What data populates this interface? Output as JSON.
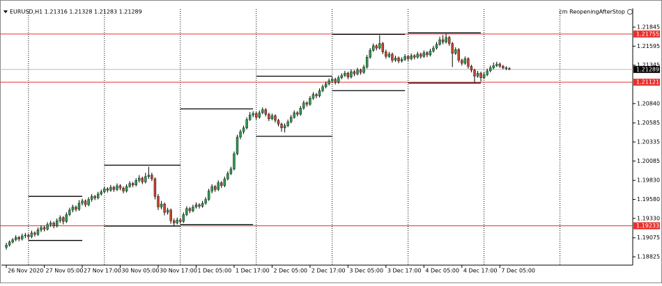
{
  "chart_data": {
    "type": "candlestick",
    "symbol_line": "EURUSD,H1  1.21316 1.21328 1.21283 1.21289",
    "indicator": "cm ReopeningAfterStop",
    "ylim": [
      1.18725,
      1.22083
    ],
    "yticks": [
      1.21845,
      1.21595,
      1.21345,
      {
        "value": 1.2084,
        "label": "1.20840"
      },
      1.20585,
      1.20335,
      1.20085,
      {
        "value": 1.1983,
        "label": "1.19830"
      },
      {
        "value": 1.1958,
        "label": "1.19580"
      },
      {
        "value": 1.1933,
        "label": "1.19330"
      },
      1.19075,
      1.18825
    ],
    "xlim": [
      -2,
      198
    ],
    "xticks": [
      {
        "value": 0,
        "label": "26 Nov 2020"
      },
      {
        "value": 12,
        "label": "27 Nov 05:00"
      },
      {
        "value": 24,
        "label": "27 Nov 17:00"
      },
      {
        "value": 36,
        "label": "30 Nov 05:00"
      },
      {
        "value": 48,
        "label": "30 Nov 17:00"
      },
      {
        "value": 60,
        "label": "1 Dec 05:00"
      },
      {
        "value": 72,
        "label": "1 Dec 17:00"
      },
      {
        "value": 84,
        "label": "2 Dec 05:00"
      },
      {
        "value": 96,
        "label": "2 Dec 17:00"
      },
      {
        "value": 108,
        "label": "3 Dec 05:00"
      },
      {
        "value": 120,
        "label": "3 Dec 17:00"
      },
      {
        "value": 132,
        "label": "4 Dec 05:00"
      },
      {
        "value": 144,
        "label": "4 Dec 17:00"
      },
      {
        "value": 156,
        "label": "7 Dec 05:00"
      }
    ],
    "separators": [
      7,
      31,
      55,
      79,
      103,
      127,
      151,
      175
    ],
    "up_color": "#2e9a4e",
    "down_color": "#c0462e",
    "levels": [
      {
        "value": 1.21755,
        "color": "#e8302c"
      },
      {
        "value": 1.21289,
        "color": "#b8b8b8",
        "current": true
      },
      {
        "value": 1.21121,
        "color": "#e8302c"
      },
      {
        "value": 1.19233,
        "color": "#e8302c"
      }
    ],
    "ranges": [
      {
        "start": 7,
        "end": 24,
        "high": 1.1962,
        "low": 1.1904
      },
      {
        "start": 31,
        "end": 55,
        "high": 1.2003,
        "low": 1.1923
      },
      {
        "start": 55,
        "end": 78,
        "high": 1.2077,
        "low": 1.1925
      },
      {
        "start": 79,
        "end": 103,
        "high": 1.212,
        "low": 1.2041
      },
      {
        "start": 103,
        "end": 126,
        "high": 1.2175,
        "low": 1.2101
      },
      {
        "start": 127,
        "end": 150,
        "high": 1.2177,
        "low": 1.2111
      }
    ],
    "candles": [
      [
        1.1895,
        1.1901,
        1.1892,
        1.1898
      ],
      [
        1.1898,
        1.1904,
        1.1896,
        1.1902
      ],
      [
        1.1902,
        1.1907,
        1.19,
        1.1905
      ],
      [
        1.1905,
        1.1911,
        1.1903,
        1.1908
      ],
      [
        1.1908,
        1.191,
        1.1903,
        1.1906
      ],
      [
        1.1906,
        1.1913,
        1.1904,
        1.191
      ],
      [
        1.191,
        1.1914,
        1.1907,
        1.1911
      ],
      [
        1.1911,
        1.1913,
        1.1905,
        1.1909
      ],
      [
        1.1909,
        1.1917,
        1.1907,
        1.1914
      ],
      [
        1.1914,
        1.1916,
        1.1909,
        1.1912
      ],
      [
        1.1912,
        1.1921,
        1.191,
        1.1918
      ],
      [
        1.1918,
        1.1924,
        1.1915,
        1.1921
      ],
      [
        1.1921,
        1.1923,
        1.1916,
        1.1919
      ],
      [
        1.1919,
        1.1928,
        1.1917,
        1.1925
      ],
      [
        1.1925,
        1.193,
        1.1922,
        1.1927
      ],
      [
        1.1927,
        1.1929,
        1.192,
        1.1923
      ],
      [
        1.1923,
        1.1933,
        1.1921,
        1.193
      ],
      [
        1.193,
        1.1937,
        1.1927,
        1.1934
      ],
      [
        1.1934,
        1.1936,
        1.1925,
        1.1929
      ],
      [
        1.1929,
        1.1941,
        1.1927,
        1.1938
      ],
      [
        1.1938,
        1.1947,
        1.1936,
        1.1944
      ],
      [
        1.1944,
        1.1951,
        1.1941,
        1.1948
      ],
      [
        1.1948,
        1.195,
        1.1942,
        1.1945
      ],
      [
        1.1945,
        1.1957,
        1.1943,
        1.1953
      ],
      [
        1.1953,
        1.1959,
        1.195,
        1.1956
      ],
      [
        1.1956,
        1.1958,
        1.1948,
        1.1951
      ],
      [
        1.1951,
        1.1961,
        1.1949,
        1.1958
      ],
      [
        1.1958,
        1.1965,
        1.1955,
        1.1962
      ],
      [
        1.1962,
        1.1964,
        1.1957,
        1.196
      ],
      [
        1.196,
        1.1968,
        1.1958,
        1.1965
      ],
      [
        1.1965,
        1.1971,
        1.1963,
        1.1968
      ],
      [
        1.1968,
        1.1975,
        1.1966,
        1.1972
      ],
      [
        1.1972,
        1.1974,
        1.1967,
        1.197
      ],
      [
        1.197,
        1.1977,
        1.1968,
        1.1974
      ],
      [
        1.1974,
        1.1976,
        1.1968,
        1.1971
      ],
      [
        1.1971,
        1.1979,
        1.1969,
        1.1976
      ],
      [
        1.1976,
        1.1978,
        1.197,
        1.1973
      ],
      [
        1.1973,
        1.1975,
        1.1966,
        1.1969
      ],
      [
        1.1969,
        1.1978,
        1.1967,
        1.1975
      ],
      [
        1.1975,
        1.1982,
        1.1973,
        1.1979
      ],
      [
        1.1979,
        1.1981,
        1.1974,
        1.1977
      ],
      [
        1.1977,
        1.1986,
        1.1975,
        1.1983
      ],
      [
        1.1983,
        1.199,
        1.198,
        1.1986
      ],
      [
        1.1986,
        1.1988,
        1.1978,
        1.1981
      ],
      [
        1.1981,
        1.1993,
        1.1979,
        1.1988
      ],
      [
        1.1988,
        1.2001,
        1.1985,
        1.199
      ],
      [
        1.199,
        1.1993,
        1.1982,
        1.1985
      ],
      [
        1.1985,
        1.1987,
        1.1958,
        1.1962
      ],
      [
        1.1962,
        1.1965,
        1.1944,
        1.1948
      ],
      [
        1.1948,
        1.1956,
        1.1945,
        1.1952
      ],
      [
        1.1952,
        1.1954,
        1.1937,
        1.1941
      ],
      [
        1.1941,
        1.1947,
        1.1938,
        1.1944
      ],
      [
        1.1944,
        1.1946,
        1.1926,
        1.193
      ],
      [
        1.193,
        1.1933,
        1.1923,
        1.1927
      ],
      [
        1.1927,
        1.1934,
        1.1925,
        1.1931
      ],
      [
        1.1931,
        1.1933,
        1.1926,
        1.1929
      ],
      [
        1.1929,
        1.1941,
        1.1927,
        1.1938
      ],
      [
        1.1938,
        1.1949,
        1.1936,
        1.1946
      ],
      [
        1.1946,
        1.1948,
        1.194,
        1.1943
      ],
      [
        1.1943,
        1.1951,
        1.1941,
        1.1948
      ],
      [
        1.1948,
        1.1954,
        1.1946,
        1.1951
      ],
      [
        1.1951,
        1.1953,
        1.1946,
        1.1949
      ],
      [
        1.1949,
        1.1956,
        1.1947,
        1.1953
      ],
      [
        1.1953,
        1.1961,
        1.1951,
        1.1958
      ],
      [
        1.1958,
        1.1972,
        1.1956,
        1.1969
      ],
      [
        1.1969,
        1.1978,
        1.1966,
        1.1975
      ],
      [
        1.1975,
        1.1977,
        1.1968,
        1.1971
      ],
      [
        1.1971,
        1.1983,
        1.1969,
        1.198
      ],
      [
        1.198,
        1.1982,
        1.1973,
        1.1976
      ],
      [
        1.1976,
        1.1988,
        1.1974,
        1.1985
      ],
      [
        1.1985,
        1.1995,
        1.1983,
        1.1992
      ],
      [
        1.1992,
        1.2001,
        1.199,
        1.1998
      ],
      [
        1.1998,
        1.2021,
        1.1996,
        1.2018
      ],
      [
        1.2018,
        1.2043,
        1.2016,
        1.204
      ],
      [
        1.204,
        1.205,
        1.2037,
        1.2047
      ],
      [
        1.2047,
        1.2055,
        1.2044,
        1.2052
      ],
      [
        1.2052,
        1.2066,
        1.205,
        1.2063
      ],
      [
        1.2063,
        1.2073,
        1.2061,
        1.2069
      ],
      [
        1.2069,
        1.2074,
        1.2066,
        1.2071
      ],
      [
        1.2071,
        1.2073,
        1.2063,
        1.2066
      ],
      [
        1.2066,
        1.2075,
        1.2064,
        1.2072
      ],
      [
        1.2072,
        1.2079,
        1.207,
        1.2076
      ],
      [
        1.2076,
        1.2078,
        1.2067,
        1.207
      ],
      [
        1.207,
        1.2072,
        1.2061,
        1.2064
      ],
      [
        1.2064,
        1.2071,
        1.2062,
        1.2068
      ],
      [
        1.2068,
        1.207,
        1.2059,
        1.2062
      ],
      [
        1.2062,
        1.2064,
        1.2054,
        1.2057
      ],
      [
        1.2057,
        1.2059,
        1.2047,
        1.2052
      ],
      [
        1.2052,
        1.2058,
        1.2046,
        1.2055
      ],
      [
        1.2055,
        1.2063,
        1.2053,
        1.206
      ],
      [
        1.206,
        1.2069,
        1.2058,
        1.2066
      ],
      [
        1.2066,
        1.2075,
        1.2064,
        1.2072
      ],
      [
        1.2072,
        1.2074,
        1.2067,
        1.207
      ],
      [
        1.207,
        1.2081,
        1.2068,
        1.2078
      ],
      [
        1.2078,
        1.2088,
        1.2076,
        1.2085
      ],
      [
        1.2085,
        1.2087,
        1.208,
        1.2083
      ],
      [
        1.2083,
        1.2094,
        1.2081,
        1.2091
      ],
      [
        1.2091,
        1.2099,
        1.2089,
        1.2096
      ],
      [
        1.2096,
        1.2098,
        1.2091,
        1.2094
      ],
      [
        1.2094,
        1.2104,
        1.2092,
        1.2101
      ],
      [
        1.2101,
        1.2109,
        1.2099,
        1.2106
      ],
      [
        1.2106,
        1.2113,
        1.2104,
        1.211
      ],
      [
        1.211,
        1.2117,
        1.2108,
        1.2114
      ],
      [
        1.2114,
        1.2119,
        1.2111,
        1.2116
      ],
      [
        1.2116,
        1.2118,
        1.2109,
        1.2112
      ],
      [
        1.2112,
        1.2121,
        1.211,
        1.2118
      ],
      [
        1.2118,
        1.2124,
        1.2116,
        1.2121
      ],
      [
        1.2121,
        1.2127,
        1.2119,
        1.2124
      ],
      [
        1.2124,
        1.2126,
        1.2116,
        1.2119
      ],
      [
        1.2119,
        1.2129,
        1.2117,
        1.2126
      ],
      [
        1.2126,
        1.2128,
        1.212,
        1.2123
      ],
      [
        1.2123,
        1.2131,
        1.2121,
        1.2128
      ],
      [
        1.2128,
        1.213,
        1.2122,
        1.2125
      ],
      [
        1.2125,
        1.2135,
        1.2123,
        1.2132
      ],
      [
        1.2132,
        1.2148,
        1.213,
        1.2145
      ],
      [
        1.2145,
        1.2157,
        1.2143,
        1.2154
      ],
      [
        1.2154,
        1.2163,
        1.2152,
        1.216
      ],
      [
        1.216,
        1.2162,
        1.2154,
        1.2157
      ],
      [
        1.2157,
        1.2174,
        1.2155,
        1.2163
      ],
      [
        1.2163,
        1.2165,
        1.2149,
        1.2152
      ],
      [
        1.2152,
        1.2155,
        1.2143,
        1.2146
      ],
      [
        1.2146,
        1.2152,
        1.2144,
        1.2149
      ],
      [
        1.2149,
        1.2151,
        1.2138,
        1.2141
      ],
      [
        1.2141,
        1.2147,
        1.2139,
        1.2144
      ],
      [
        1.2144,
        1.2146,
        1.2137,
        1.214
      ],
      [
        1.214,
        1.2145,
        1.2138,
        1.2142
      ],
      [
        1.2142,
        1.2149,
        1.214,
        1.2146
      ],
      [
        1.2146,
        1.2148,
        1.214,
        1.2143
      ],
      [
        1.2143,
        1.215,
        1.2141,
        1.2147
      ],
      [
        1.2147,
        1.2149,
        1.2142,
        1.2145
      ],
      [
        1.2145,
        1.2152,
        1.2143,
        1.2149
      ],
      [
        1.2149,
        1.2151,
        1.2143,
        1.2146
      ],
      [
        1.2146,
        1.2154,
        1.2144,
        1.2151
      ],
      [
        1.2151,
        1.2153,
        1.2145,
        1.2148
      ],
      [
        1.2148,
        1.2156,
        1.2146,
        1.2153
      ],
      [
        1.2153,
        1.216,
        1.2151,
        1.2157
      ],
      [
        1.2157,
        1.2165,
        1.2155,
        1.2162
      ],
      [
        1.2162,
        1.2172,
        1.216,
        1.2168
      ],
      [
        1.2168,
        1.2174,
        1.2162,
        1.2165
      ],
      [
        1.2165,
        1.2176,
        1.2163,
        1.2171
      ],
      [
        1.2171,
        1.2173,
        1.216,
        1.2163
      ],
      [
        1.2163,
        1.2165,
        1.2132,
        1.215
      ],
      [
        1.215,
        1.2158,
        1.2148,
        1.2155
      ],
      [
        1.2155,
        1.2157,
        1.2138,
        1.2141
      ],
      [
        1.2141,
        1.2143,
        1.2134,
        1.2137
      ],
      [
        1.2137,
        1.2146,
        1.2135,
        1.2143
      ],
      [
        1.2143,
        1.2145,
        1.213,
        1.2133
      ],
      [
        1.2133,
        1.2135,
        1.2125,
        1.2128
      ],
      [
        1.2128,
        1.213,
        1.2112,
        1.212
      ],
      [
        1.212,
        1.2127,
        1.2118,
        1.2124
      ],
      [
        1.2124,
        1.2126,
        1.2113,
        1.2118
      ],
      [
        1.2118,
        1.2125,
        1.2116,
        1.2122
      ],
      [
        1.2122,
        1.213,
        1.212,
        1.2127
      ],
      [
        1.2127,
        1.2134,
        1.2125,
        1.2131
      ],
      [
        1.2131,
        1.2138,
        1.2129,
        1.2134
      ],
      [
        1.2134,
        1.2139,
        1.2132,
        1.2136
      ],
      [
        1.2136,
        1.2138,
        1.2131,
        1.2133
      ],
      [
        1.2133,
        1.2135,
        1.2129,
        1.2131
      ],
      [
        1.2131,
        1.2133,
        1.2128,
        1.213
      ],
      [
        1.213,
        1.2132,
        1.21282,
        1.21289
      ]
    ]
  }
}
